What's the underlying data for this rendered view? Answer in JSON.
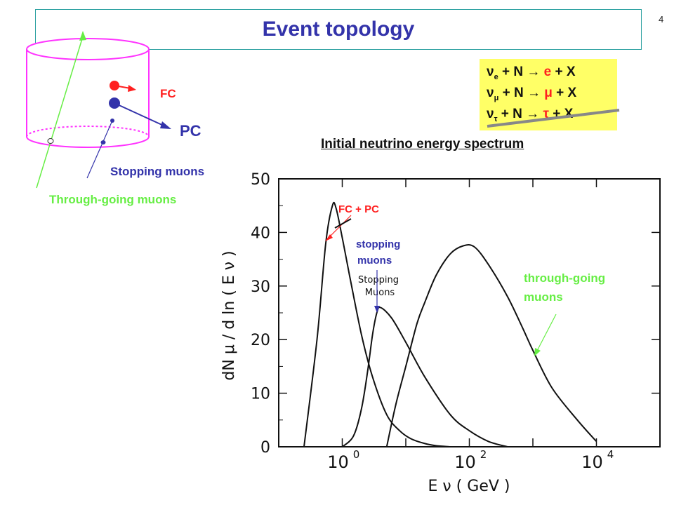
{
  "slide": {
    "title": "Event topology",
    "page_number": "4"
  },
  "topology": {
    "fc_label": "FC",
    "pc_label": "PC",
    "stopping_label": "Stopping muons",
    "through_label": "Through-going muons",
    "colors": {
      "detector": "#ff33ff",
      "fc": "#ff2020",
      "pc": "#3333aa",
      "through": "#66ee44"
    }
  },
  "reactions": [
    {
      "nu": "ν",
      "sub": "e",
      "mid": " + N → ",
      "lepton": "e",
      "tail": " + X",
      "lepton_color": "#ff2020"
    },
    {
      "nu": "ν",
      "sub": "μ",
      "mid": " + N → ",
      "lepton": "μ",
      "tail": " + X",
      "lepton_color": "#ff2020"
    },
    {
      "nu": "ν",
      "sub": "τ",
      "mid": " + N → ",
      "lepton": "τ",
      "tail": " + X",
      "lepton_color": "#ff2020"
    }
  ],
  "spectrum_title": "Initial neutrino energy spectrum",
  "annotations": {
    "fc_pc": "FC + PC",
    "stopping_line1": "stopping",
    "stopping_line2": "muons",
    "through_line1": "through-going",
    "through_line2": "muons",
    "inset_line1": "Stopping",
    "inset_line2": "Muons"
  },
  "chart_data": {
    "type": "line",
    "xlabel": "E ν ( GeV )",
    "ylabel": "dN μ / d ln ( E ν )",
    "xscale": "log",
    "xlim": [
      0.1,
      100000
    ],
    "ylim": [
      0,
      50
    ],
    "yticks": [
      0,
      10,
      20,
      30,
      40,
      50
    ],
    "xtick_labels": [
      {
        "base": "10",
        "exp": "0",
        "value": 1
      },
      {
        "base": "10",
        "exp": "2",
        "value": 100
      },
      {
        "base": "10",
        "exp": "4",
        "value": 10000
      }
    ],
    "series": [
      {
        "x": [
          0.25,
          0.4,
          0.55,
          0.7,
          0.8,
          1.0,
          1.3,
          2.0,
          3.0,
          5.0,
          8.0,
          12,
          20,
          30,
          50
        ],
        "values": [
          0,
          20,
          38,
          45,
          44.5,
          39,
          32,
          21,
          13,
          6,
          3,
          1.5,
          0.6,
          0.2,
          0
        ]
      },
      {
        "x": [
          1.0,
          1.5,
          2.0,
          2.5,
          3.0,
          3.5,
          4.0,
          6.0,
          10,
          20,
          50,
          100,
          200,
          400
        ],
        "values": [
          0,
          2,
          7,
          14,
          21,
          25,
          26,
          24,
          19.5,
          13,
          6,
          3,
          1,
          0
        ]
      },
      {
        "x": [
          5,
          7,
          10,
          15,
          20,
          30,
          50,
          80,
          120,
          200,
          400,
          700,
          1000,
          2000,
          5000,
          10000
        ],
        "values": [
          0,
          8,
          15,
          23,
          27,
          32,
          36,
          37.5,
          37.3,
          34,
          28,
          22,
          18,
          11,
          5,
          1
        ]
      }
    ],
    "grid": false,
    "legend": "none"
  }
}
